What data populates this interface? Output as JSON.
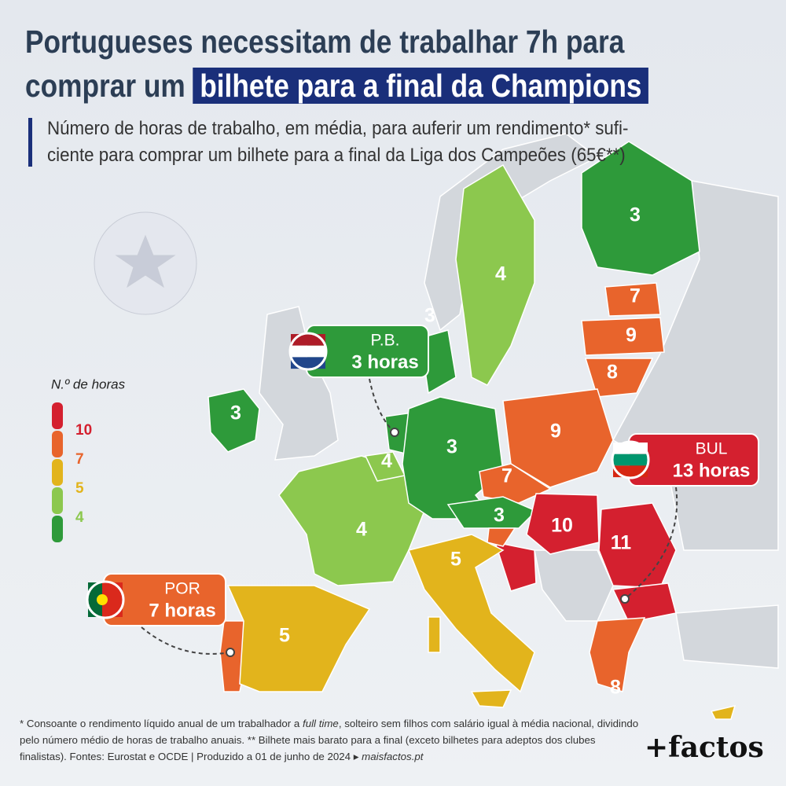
{
  "title": {
    "line1": "Portugueses necessitam de trabalhar 7h para",
    "line2": "comprar um",
    "highlight": "bilhete para a final da Champions"
  },
  "subtitle": [
    "Número de horas de trabalho, em média, para auferir um rendimento* sufi-",
    "ciente para comprar um bilhete para a final da Liga dos Campeões (65€**)"
  ],
  "legend": {
    "title": "N.º de horas",
    "labels": [
      "10",
      "7",
      "5",
      "4"
    ],
    "colors": [
      "#d4202f",
      "#e8642c",
      "#e2b41c",
      "#8cc84e",
      "#2e9a3a"
    ]
  },
  "map_labels": [
    "3",
    "4",
    "3",
    "7",
    "9",
    "8",
    "3",
    "4",
    "3",
    "9",
    "7",
    "3",
    "10",
    "11",
    "4",
    "5",
    "5",
    "8"
  ],
  "callouts": [
    {
      "name": "P.B.",
      "value": "3 horas"
    },
    {
      "name": "BUL",
      "value": "13 horas"
    },
    {
      "name": "POR",
      "value": "7 horas"
    }
  ],
  "footnote": {
    "part1": "* Consoante o rendimento líquido anual de um trabalhador a ",
    "italic1": "full time",
    "part2": ", solteiro sem filhos com salário igual à média nacional, dividindo pelo número médio de horas de trabalho anuais. ** Bilhete mais barato para a final (exceto bilhetes para adeptos dos clubes finalistas). Fontes: Eurostat e OCDE | Produzido a 01 de junho de 2024 ▸ ",
    "italic2": "maisfactos.pt"
  },
  "logo": "+factos"
}
